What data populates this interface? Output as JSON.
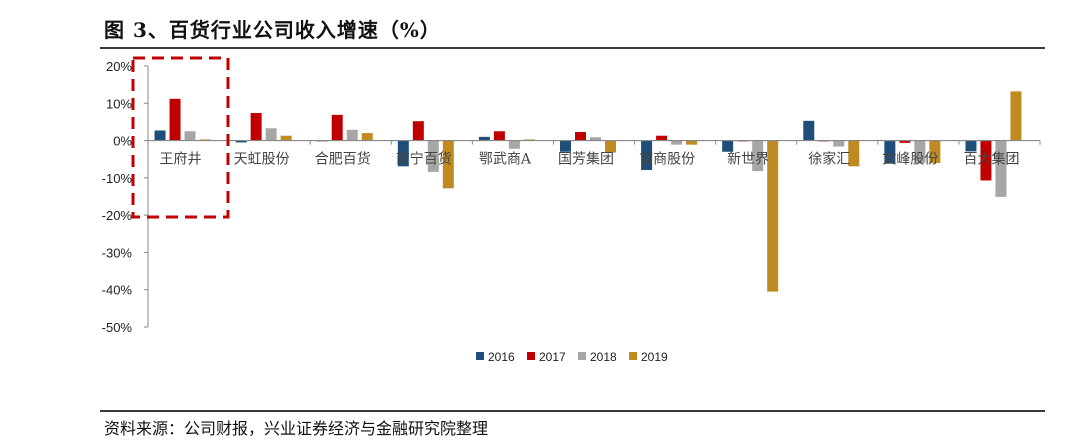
{
  "title": "图 3、百货行业公司收入增速（%）",
  "source": "资料来源：公司财报，兴业证券经济与金融研究院整理",
  "chart_data": {
    "type": "bar",
    "title": "",
    "xlabel": "",
    "ylabel": "",
    "ylim": [
      -50,
      20
    ],
    "yticks": [
      "20%",
      "10%",
      "0%",
      "-10%",
      "-20%",
      "-30%",
      "-40%",
      "-50%"
    ],
    "grid": false,
    "legend_position": "bottom",
    "highlight_box": "王府井",
    "highlight_color": "#c00000",
    "categories": [
      "王府井",
      "天虹股份",
      "合肥百货",
      "南宁百货",
      "鄂武商A",
      "国芳集团",
      "首商股份",
      "新世界",
      "徐家汇",
      "文峰股份",
      "百大集团"
    ],
    "series": [
      {
        "name": "2016",
        "color": "#1f4e79",
        "values": [
          2.7,
          -0.5,
          0,
          -6.9,
          1.0,
          -3.0,
          -7.9,
          -3.0,
          5.3,
          -6.2,
          -2.9
        ]
      },
      {
        "name": "2017",
        "color": "#c00000",
        "values": [
          11.2,
          7.4,
          6.9,
          5.2,
          2.5,
          2.3,
          1.3,
          0,
          0,
          -0.6,
          -10.7
        ]
      },
      {
        "name": "2018",
        "color": "#a6a6a6",
        "values": [
          2.5,
          3.3,
          2.9,
          -8.4,
          -2.2,
          0.9,
          -1.1,
          -8.2,
          -1.6,
          -6.0,
          -15.1
        ]
      },
      {
        "name": "2019",
        "color": "#bf8a1f",
        "values": [
          0.3,
          1.3,
          2.0,
          -12.8,
          0.3,
          -3.2,
          -1.1,
          -40.5,
          -6.9,
          -6.0,
          13.2
        ]
      }
    ]
  }
}
